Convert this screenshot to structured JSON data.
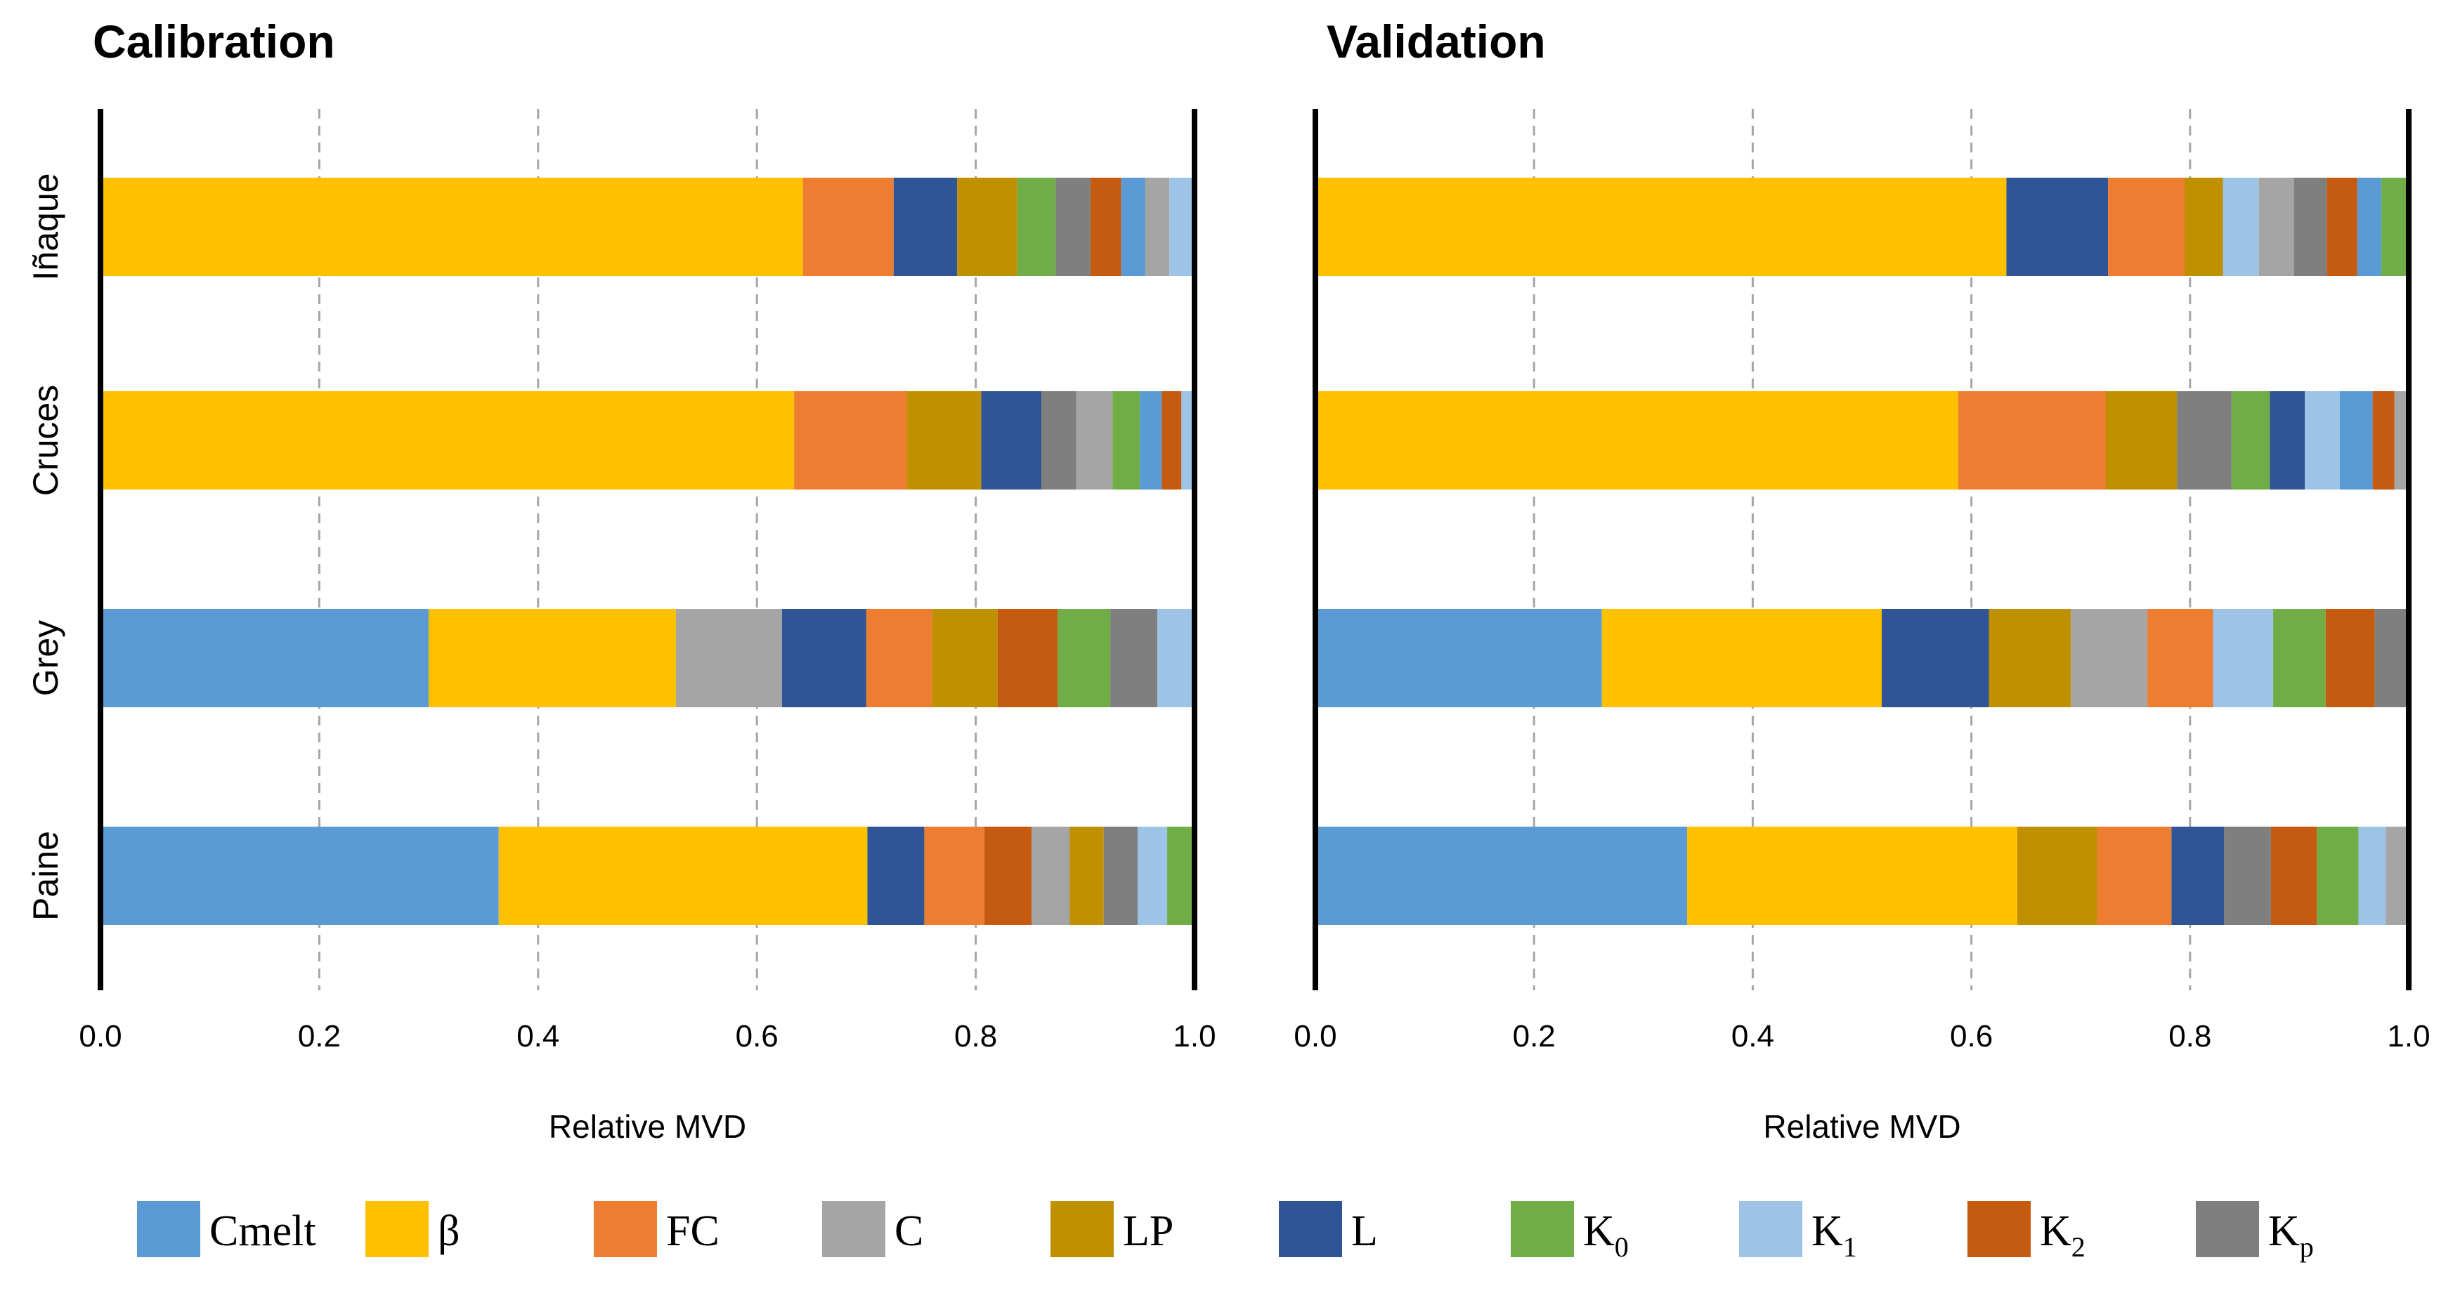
{
  "chart_data": [
    {
      "type": "bar",
      "orientation": "horizontal",
      "stacked": true,
      "title": "Calibration",
      "xlabel": "Relative MVD",
      "ylabel": "",
      "xlim": [
        0,
        1
      ],
      "xticks": [
        "0.0",
        "0.2",
        "0.4",
        "0.6",
        "0.8",
        "1.0"
      ],
      "grid": "vertical dashed at 0.2, 0.4, 0.6, 0.8",
      "categories": [
        "Iñaque",
        "Cruces",
        "Grey",
        "Paine"
      ],
      "bars": [
        {
          "category": "Iñaque",
          "segments": [
            {
              "param": "β",
              "value": 0.642
            },
            {
              "param": "FC",
              "value": 0.083
            },
            {
              "param": "L",
              "value": 0.058
            },
            {
              "param": "LP",
              "value": 0.055
            },
            {
              "param": "K0",
              "value": 0.035
            },
            {
              "param": "Kp",
              "value": 0.032
            },
            {
              "param": "K2",
              "value": 0.028
            },
            {
              "param": "Cmelt",
              "value": 0.022
            },
            {
              "param": "C",
              "value": 0.022
            },
            {
              "param": "K1",
              "value": 0.023
            }
          ]
        },
        {
          "category": "Cruces",
          "segments": [
            {
              "param": "β",
              "value": 0.634
            },
            {
              "param": "FC",
              "value": 0.103
            },
            {
              "param": "LP",
              "value": 0.068
            },
            {
              "param": "L",
              "value": 0.055
            },
            {
              "param": "Kp",
              "value": 0.032
            },
            {
              "param": "C",
              "value": 0.033
            },
            {
              "param": "K0",
              "value": 0.025
            },
            {
              "param": "Cmelt",
              "value": 0.02
            },
            {
              "param": "K2",
              "value": 0.018
            },
            {
              "param": "K1",
              "value": 0.012
            }
          ]
        },
        {
          "category": "Grey",
          "segments": [
            {
              "param": "Cmelt",
              "value": 0.3
            },
            {
              "param": "β",
              "value": 0.226
            },
            {
              "param": "C",
              "value": 0.097
            },
            {
              "param": "L",
              "value": 0.077
            },
            {
              "param": "FC",
              "value": 0.06
            },
            {
              "param": "LP",
              "value": 0.06
            },
            {
              "param": "K2",
              "value": 0.055
            },
            {
              "param": "K0",
              "value": 0.048
            },
            {
              "param": "Kp",
              "value": 0.043
            },
            {
              "param": "K1",
              "value": 0.034
            }
          ]
        },
        {
          "category": "Paine",
          "segments": [
            {
              "param": "Cmelt",
              "value": 0.364
            },
            {
              "param": "β",
              "value": 0.337
            },
            {
              "param": "L",
              "value": 0.052
            },
            {
              "param": "FC",
              "value": 0.055
            },
            {
              "param": "K2",
              "value": 0.043
            },
            {
              "param": "C",
              "value": 0.035
            },
            {
              "param": "LP",
              "value": 0.031
            },
            {
              "param": "Kp",
              "value": 0.031
            },
            {
              "param": "K1",
              "value": 0.027
            },
            {
              "param": "K0",
              "value": 0.025
            }
          ]
        }
      ]
    },
    {
      "type": "bar",
      "orientation": "horizontal",
      "stacked": true,
      "title": "Validation",
      "xlabel": "Relative MVD",
      "ylabel": "",
      "xlim": [
        0,
        1
      ],
      "xticks": [
        "0.0",
        "0.2",
        "0.4",
        "0.6",
        "0.8",
        "1.0"
      ],
      "grid": "vertical dashed at 0.2, 0.4, 0.6, 0.8",
      "categories": [
        "Iñaque",
        "Cruces",
        "Grey",
        "Paine"
      ],
      "bars": [
        {
          "category": "Iñaque",
          "segments": [
            {
              "param": "β",
              "value": 0.632
            },
            {
              "param": "L",
              "value": 0.093
            },
            {
              "param": "FC",
              "value": 0.07
            },
            {
              "param": "LP",
              "value": 0.035
            },
            {
              "param": "K1",
              "value": 0.033
            },
            {
              "param": "C",
              "value": 0.032
            },
            {
              "param": "Kp",
              "value": 0.03
            },
            {
              "param": "K2",
              "value": 0.028
            },
            {
              "param": "Cmelt",
              "value": 0.022
            },
            {
              "param": "K0",
              "value": 0.025
            }
          ]
        },
        {
          "category": "Cruces",
          "segments": [
            {
              "param": "β",
              "value": 0.588
            },
            {
              "param": "FC",
              "value": 0.135
            },
            {
              "param": "LP",
              "value": 0.065
            },
            {
              "param": "Kp",
              "value": 0.05
            },
            {
              "param": "K0",
              "value": 0.035
            },
            {
              "param": "L",
              "value": 0.032
            },
            {
              "param": "K1",
              "value": 0.032
            },
            {
              "param": "Cmelt",
              "value": 0.03
            },
            {
              "param": "K2",
              "value": 0.02
            },
            {
              "param": "C",
              "value": 0.013
            }
          ]
        },
        {
          "category": "Grey",
          "segments": [
            {
              "param": "Cmelt",
              "value": 0.262
            },
            {
              "param": "β",
              "value": 0.256
            },
            {
              "param": "L",
              "value": 0.098
            },
            {
              "param": "LP",
              "value": 0.075
            },
            {
              "param": "C",
              "value": 0.07
            },
            {
              "param": "FC",
              "value": 0.06
            },
            {
              "param": "K1",
              "value": 0.055
            },
            {
              "param": "K0",
              "value": 0.048
            },
            {
              "param": "K2",
              "value": 0.045
            },
            {
              "param": "Kp",
              "value": 0.031
            }
          ]
        },
        {
          "category": "Paine",
          "segments": [
            {
              "param": "Cmelt",
              "value": 0.34
            },
            {
              "param": "β",
              "value": 0.302
            },
            {
              "param": "LP",
              "value": 0.073
            },
            {
              "param": "FC",
              "value": 0.068
            },
            {
              "param": "L",
              "value": 0.048
            },
            {
              "param": "Kp",
              "value": 0.043
            },
            {
              "param": "K2",
              "value": 0.042
            },
            {
              "param": "K0",
              "value": 0.038
            },
            {
              "param": "K1",
              "value": 0.025
            },
            {
              "param": "C",
              "value": 0.021
            }
          ]
        }
      ]
    }
  ],
  "legend": [
    {
      "key": "Cmelt",
      "label": "Cmelt",
      "sub": "",
      "color": "#5B9BD5"
    },
    {
      "key": "β",
      "label": "β",
      "sub": "",
      "color": "#FFC000"
    },
    {
      "key": "FC",
      "label": "FC",
      "sub": "",
      "color": "#ED7D31"
    },
    {
      "key": "C",
      "label": "C",
      "sub": "",
      "color": "#A5A5A5"
    },
    {
      "key": "LP",
      "label": "LP",
      "sub": "",
      "color": "#BF9000"
    },
    {
      "key": "L",
      "label": "L",
      "sub": "",
      "color": "#2F5597"
    },
    {
      "key": "K0",
      "label": "K",
      "sub": "0",
      "color": "#70AD47"
    },
    {
      "key": "K1",
      "label": "K",
      "sub": "1",
      "color": "#9DC3E6"
    },
    {
      "key": "K2",
      "label": "K",
      "sub": "2",
      "color": "#C55A11"
    },
    {
      "key": "Kp",
      "label": "K",
      "sub": "p",
      "color": "#7F7F7F"
    }
  ]
}
